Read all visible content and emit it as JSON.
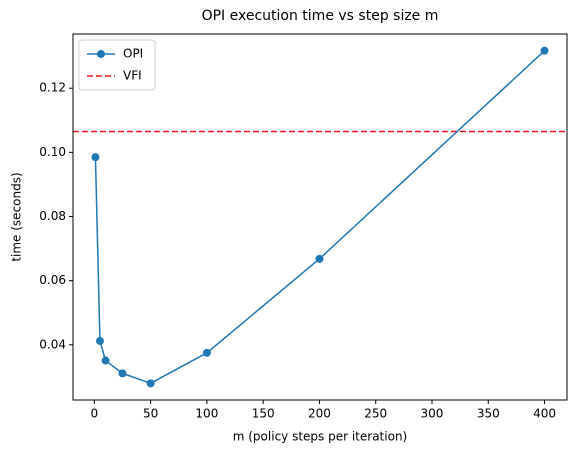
{
  "chart_data": {
    "type": "line",
    "title": "OPI execution time vs step size m",
    "xlabel": "m (policy steps per iteration)",
    "ylabel": "time (seconds)",
    "x": [
      1,
      5,
      10,
      25,
      50,
      100,
      200,
      400
    ],
    "series": [
      {
        "name": "OPI",
        "color": "#1f77b4",
        "marker": "o",
        "values": [
          0.0985,
          0.0412,
          0.0351,
          0.0311,
          0.028,
          0.0375,
          0.0668,
          0.1317
        ]
      }
    ],
    "hlines": [
      {
        "name": "VFI",
        "color": "#e41a1c",
        "style": "dashed",
        "value": 0.1065
      }
    ],
    "xlim": [
      -18.95,
      419.95
    ],
    "xticks": [
      0,
      50,
      100,
      150,
      200,
      250,
      300,
      350,
      400
    ],
    "ylim": [
      0.0228,
      0.1369
    ],
    "yticks": [
      0.04,
      0.06,
      0.08,
      {
        "value": 0.1,
        "label": "0.10"
      },
      0.12
    ],
    "legend": "upper left"
  }
}
